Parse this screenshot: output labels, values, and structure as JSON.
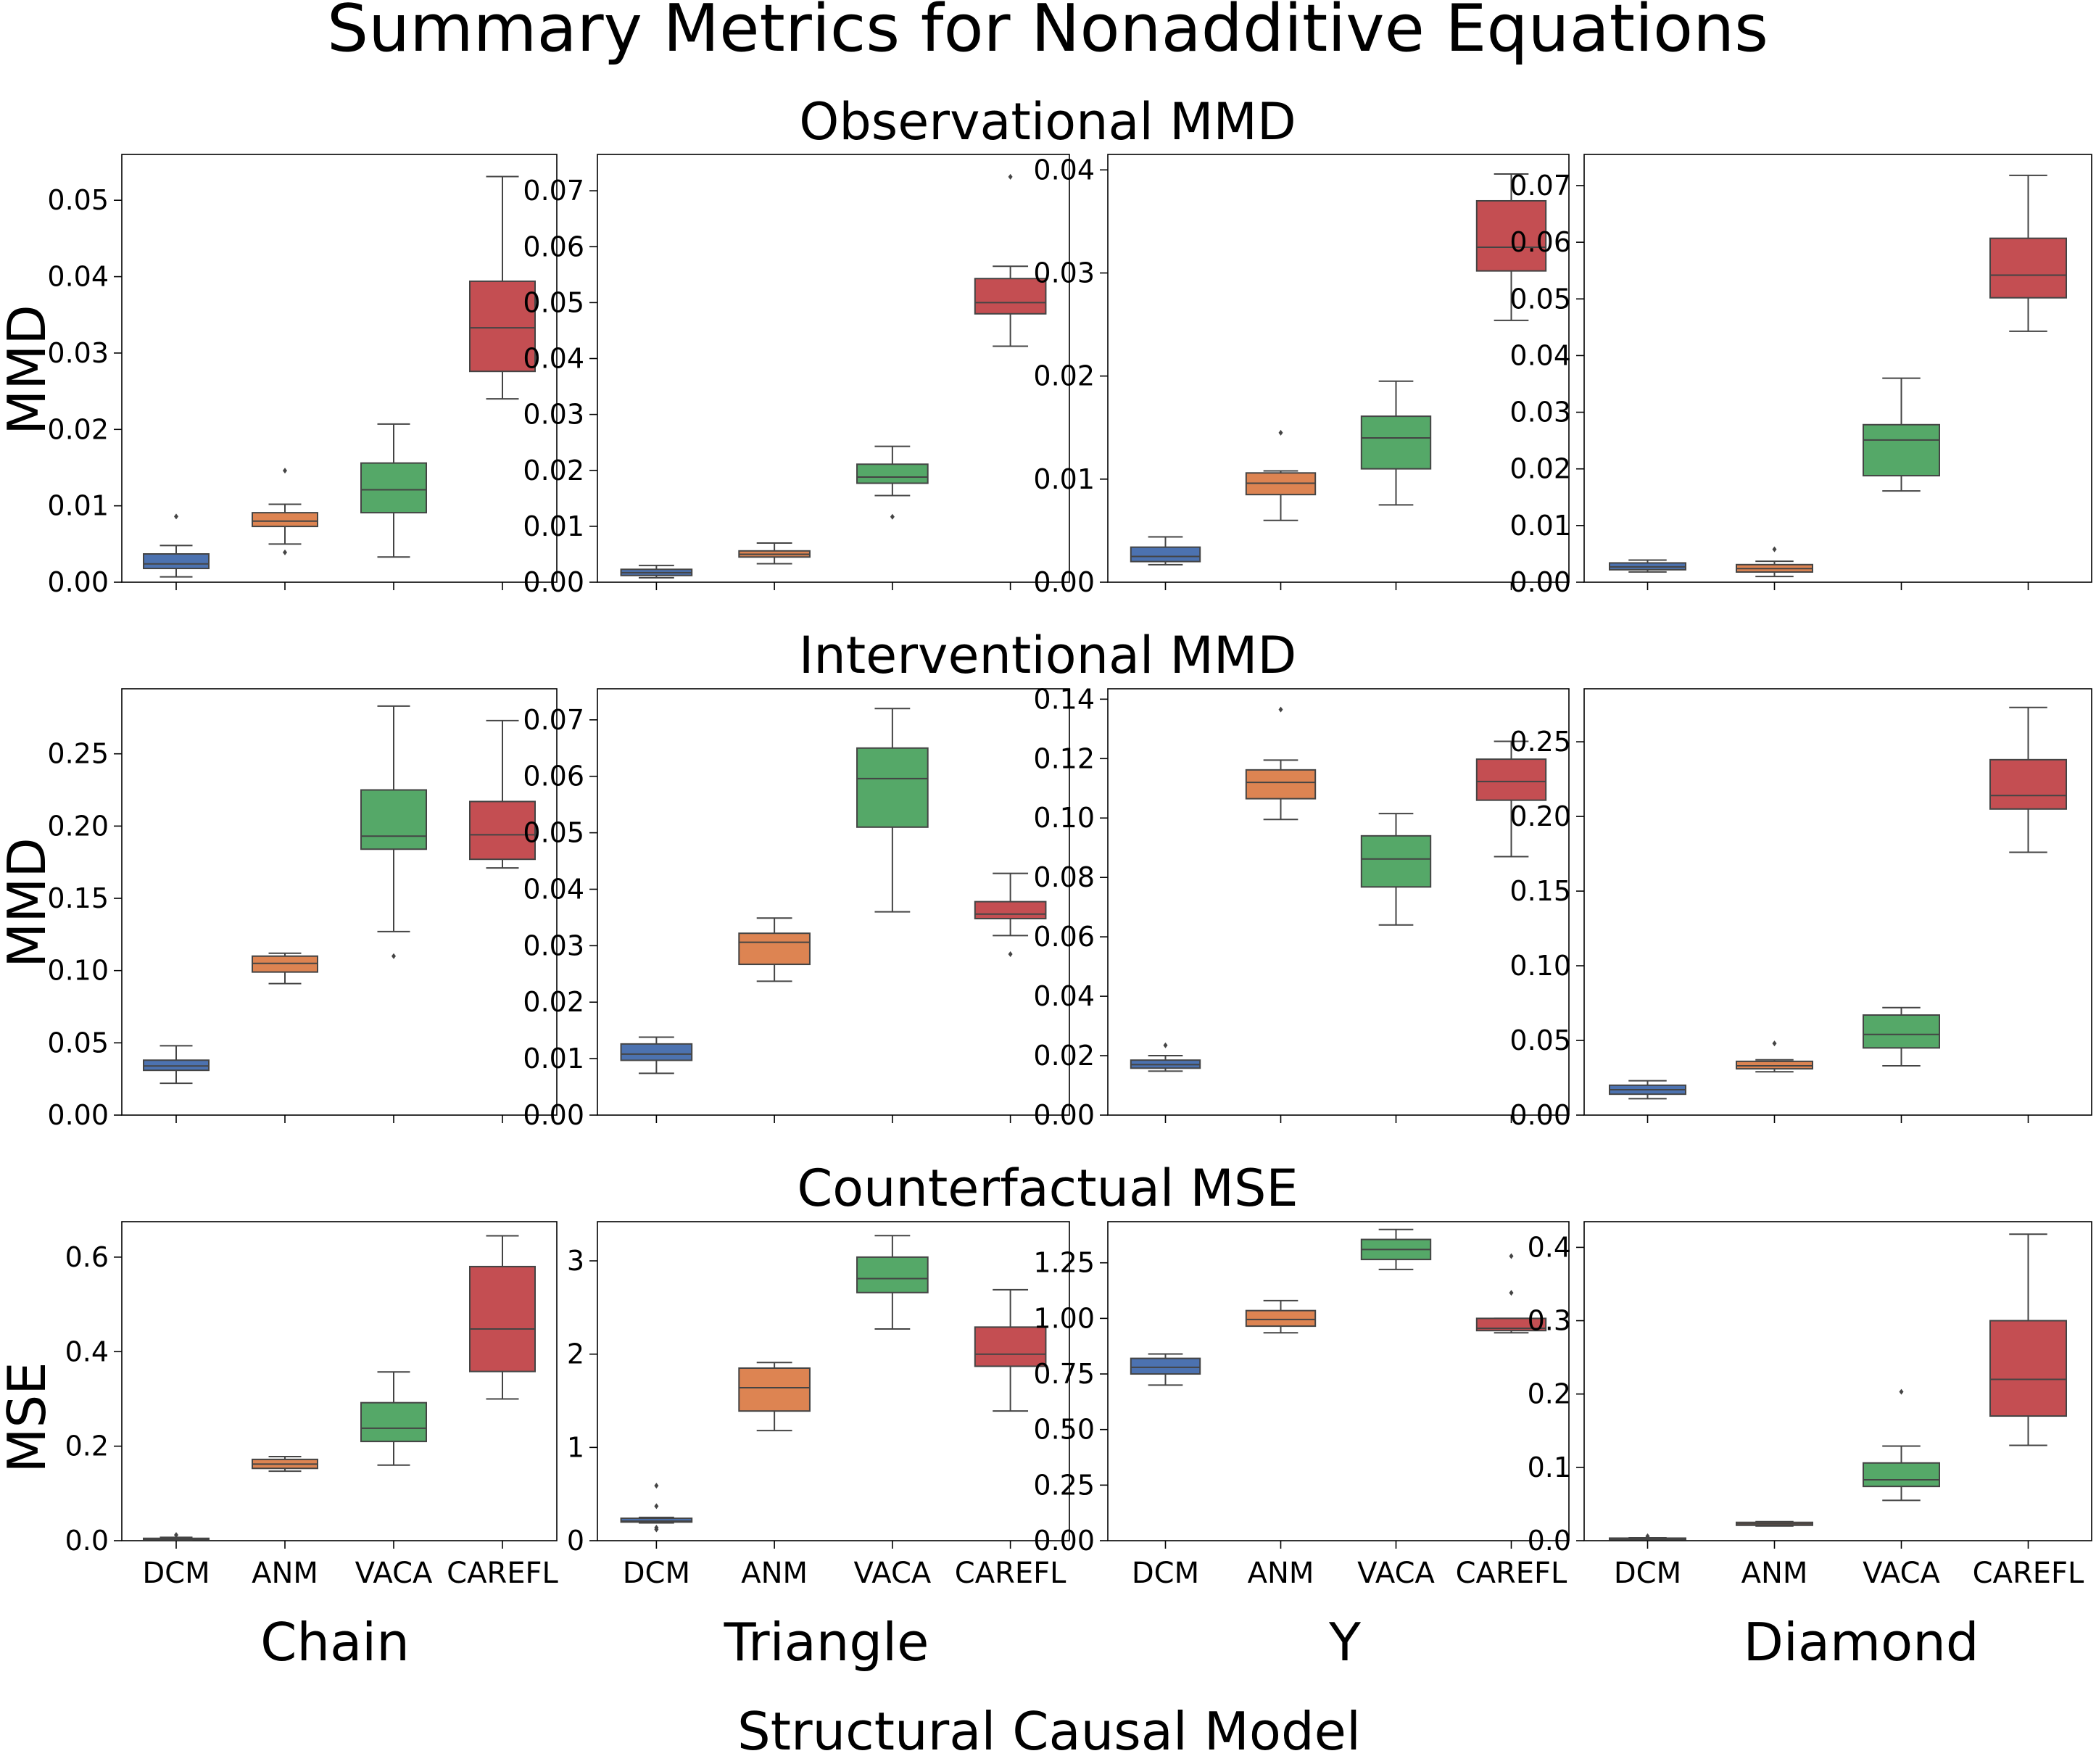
{
  "title": "Summary Metrics for Nonadditive Equations",
  "xlabel": "Structural Causal Model",
  "columns": [
    "Chain",
    "Triangle",
    "Y",
    "Diamond"
  ],
  "row_titles": [
    "Observational MMD",
    "Interventional MMD",
    "Counterfactual MSE"
  ],
  "row_ylabels": [
    "MMD",
    "MMD",
    "MSE"
  ],
  "categories": [
    "DCM",
    "ANM",
    "VACA",
    "CAREFL"
  ],
  "colors": {
    "DCM": "#4c72b0",
    "ANM": "#dd8452",
    "VACA": "#55a868",
    "CAREFL": "#c44e52"
  },
  "chart_data": [
    {
      "type": "box",
      "row": "Observational MMD",
      "column": "Chain",
      "ylabel": "MMD",
      "ylim": [
        0,
        0.056
      ],
      "yticks": [
        0.0,
        0.01,
        0.02,
        0.03,
        0.04,
        0.05
      ],
      "ytick_labels": [
        "0.00",
        "0.01",
        "0.02",
        "0.03",
        "0.04",
        "0.05"
      ],
      "boxes": [
        {
          "category": "DCM",
          "whisker_low": 0.0007,
          "q1": 0.0018,
          "median": 0.0024,
          "q3": 0.0037,
          "whisker_high": 0.0048,
          "outliers": [
            0.0086
          ]
        },
        {
          "category": "ANM",
          "whisker_low": 0.005,
          "q1": 0.0073,
          "median": 0.008,
          "q3": 0.0091,
          "whisker_high": 0.0102,
          "outliers": [
            0.0146,
            0.0039
          ]
        },
        {
          "category": "VACA",
          "whisker_low": 0.0033,
          "q1": 0.0091,
          "median": 0.0121,
          "q3": 0.0156,
          "whisker_high": 0.0207,
          "outliers": []
        },
        {
          "category": "CAREFL",
          "whisker_low": 0.024,
          "q1": 0.0276,
          "median": 0.0333,
          "q3": 0.0394,
          "whisker_high": 0.0531,
          "outliers": []
        }
      ]
    },
    {
      "type": "box",
      "row": "Observational MMD",
      "column": "Triangle",
      "ylabel": "",
      "ylim": [
        0,
        0.0765
      ],
      "yticks": [
        0.0,
        0.01,
        0.02,
        0.03,
        0.04,
        0.05,
        0.06,
        0.07
      ],
      "ytick_labels": [
        "0.00",
        "0.01",
        "0.02",
        "0.03",
        "0.04",
        "0.05",
        "0.06",
        "0.07"
      ],
      "boxes": [
        {
          "category": "DCM",
          "whisker_low": 0.0008,
          "q1": 0.0012,
          "median": 0.0017,
          "q3": 0.0023,
          "whisker_high": 0.003,
          "outliers": []
        },
        {
          "category": "ANM",
          "whisker_low": 0.0033,
          "q1": 0.0045,
          "median": 0.005,
          "q3": 0.0056,
          "whisker_high": 0.007,
          "outliers": []
        },
        {
          "category": "VACA",
          "whisker_low": 0.0155,
          "q1": 0.0177,
          "median": 0.0188,
          "q3": 0.0211,
          "whisker_high": 0.0243,
          "outliers": [
            0.0117
          ]
        },
        {
          "category": "CAREFL",
          "whisker_low": 0.0422,
          "q1": 0.048,
          "median": 0.05,
          "q3": 0.0543,
          "whisker_high": 0.0565,
          "outliers": [
            0.0725
          ]
        }
      ]
    },
    {
      "type": "box",
      "row": "Observational MMD",
      "column": "Y",
      "ylabel": "",
      "ylim": [
        0,
        0.0415
      ],
      "yticks": [
        0.0,
        0.01,
        0.02,
        0.03,
        0.04
      ],
      "ytick_labels": [
        "0.00",
        "0.01",
        "0.02",
        "0.03",
        "0.04"
      ],
      "boxes": [
        {
          "category": "DCM",
          "whisker_low": 0.0017,
          "q1": 0.002,
          "median": 0.0025,
          "q3": 0.0034,
          "whisker_high": 0.0044,
          "outliers": []
        },
        {
          "category": "ANM",
          "whisker_low": 0.006,
          "q1": 0.0085,
          "median": 0.0096,
          "q3": 0.0106,
          "whisker_high": 0.0108,
          "outliers": [
            0.0145
          ]
        },
        {
          "category": "VACA",
          "whisker_low": 0.0075,
          "q1": 0.011,
          "median": 0.014,
          "q3": 0.0161,
          "whisker_high": 0.0195,
          "outliers": []
        },
        {
          "category": "CAREFL",
          "whisker_low": 0.0254,
          "q1": 0.0302,
          "median": 0.0325,
          "q3": 0.037,
          "whisker_high": 0.0396,
          "outliers": []
        }
      ]
    },
    {
      "type": "box",
      "row": "Observational MMD",
      "column": "Diamond",
      "ylabel": "",
      "ylim": [
        0,
        0.0755
      ],
      "yticks": [
        0.0,
        0.01,
        0.02,
        0.03,
        0.04,
        0.05,
        0.06,
        0.07
      ],
      "ytick_labels": [
        "0.00",
        "0.01",
        "0.02",
        "0.03",
        "0.04",
        "0.05",
        "0.06",
        "0.07"
      ],
      "boxes": [
        {
          "category": "DCM",
          "whisker_low": 0.0018,
          "q1": 0.0022,
          "median": 0.0027,
          "q3": 0.0034,
          "whisker_high": 0.0039,
          "outliers": []
        },
        {
          "category": "ANM",
          "whisker_low": 0.001,
          "q1": 0.0018,
          "median": 0.0024,
          "q3": 0.0031,
          "whisker_high": 0.0037,
          "outliers": [
            0.0058
          ]
        },
        {
          "category": "VACA",
          "whisker_low": 0.0161,
          "q1": 0.0188,
          "median": 0.0251,
          "q3": 0.0278,
          "whisker_high": 0.036,
          "outliers": []
        },
        {
          "category": "CAREFL",
          "whisker_low": 0.0443,
          "q1": 0.0502,
          "median": 0.0542,
          "q3": 0.0607,
          "whisker_high": 0.0718,
          "outliers": []
        }
      ]
    },
    {
      "type": "box",
      "row": "Interventional MMD",
      "column": "Chain",
      "ylabel": "MMD",
      "ylim": [
        0,
        0.295
      ],
      "yticks": [
        0.0,
        0.05,
        0.1,
        0.15,
        0.2,
        0.25
      ],
      "ytick_labels": [
        "0.00",
        "0.05",
        "0.10",
        "0.15",
        "0.20",
        "0.25"
      ],
      "boxes": [
        {
          "category": "DCM",
          "whisker_low": 0.022,
          "q1": 0.031,
          "median": 0.034,
          "q3": 0.038,
          "whisker_high": 0.048,
          "outliers": []
        },
        {
          "category": "ANM",
          "whisker_low": 0.091,
          "q1": 0.099,
          "median": 0.105,
          "q3": 0.11,
          "whisker_high": 0.112,
          "outliers": []
        },
        {
          "category": "VACA",
          "whisker_low": 0.127,
          "q1": 0.184,
          "median": 0.193,
          "q3": 0.225,
          "whisker_high": 0.283,
          "outliers": [
            0.11
          ]
        },
        {
          "category": "CAREFL",
          "whisker_low": 0.171,
          "q1": 0.177,
          "median": 0.194,
          "q3": 0.217,
          "whisker_high": 0.273,
          "outliers": []
        }
      ]
    },
    {
      "type": "box",
      "row": "Interventional MMD",
      "column": "Triangle",
      "ylabel": "",
      "ylim": [
        0,
        0.0755
      ],
      "yticks": [
        0.0,
        0.01,
        0.02,
        0.03,
        0.04,
        0.05,
        0.06,
        0.07
      ],
      "ytick_labels": [
        "0.00",
        "0.01",
        "0.02",
        "0.03",
        "0.04",
        "0.05",
        "0.06",
        "0.07"
      ],
      "boxes": [
        {
          "category": "DCM",
          "whisker_low": 0.0074,
          "q1": 0.0097,
          "median": 0.0108,
          "q3": 0.0126,
          "whisker_high": 0.0138,
          "outliers": []
        },
        {
          "category": "ANM",
          "whisker_low": 0.0237,
          "q1": 0.0267,
          "median": 0.0306,
          "q3": 0.0322,
          "whisker_high": 0.0349,
          "outliers": []
        },
        {
          "category": "VACA",
          "whisker_low": 0.036,
          "q1": 0.051,
          "median": 0.0596,
          "q3": 0.065,
          "whisker_high": 0.072,
          "outliers": []
        },
        {
          "category": "CAREFL",
          "whisker_low": 0.0318,
          "q1": 0.0348,
          "median": 0.0356,
          "q3": 0.0378,
          "whisker_high": 0.0428,
          "outliers": [
            0.0285
          ]
        }
      ]
    },
    {
      "type": "box",
      "row": "Interventional MMD",
      "column": "Y",
      "ylabel": "",
      "ylim": [
        0,
        0.1435
      ],
      "yticks": [
        0.0,
        0.02,
        0.04,
        0.06,
        0.08,
        0.1,
        0.12,
        0.14
      ],
      "ytick_labels": [
        "0.00",
        "0.02",
        "0.04",
        "0.06",
        "0.08",
        "0.10",
        "0.12",
        "0.14"
      ],
      "boxes": [
        {
          "category": "DCM",
          "whisker_low": 0.0148,
          "q1": 0.0158,
          "median": 0.017,
          "q3": 0.0185,
          "whisker_high": 0.02,
          "outliers": [
            0.0235
          ]
        },
        {
          "category": "ANM",
          "whisker_low": 0.0995,
          "q1": 0.1065,
          "median": 0.112,
          "q3": 0.1162,
          "whisker_high": 0.1195,
          "outliers": [
            0.1365
          ]
        },
        {
          "category": "VACA",
          "whisker_low": 0.064,
          "q1": 0.0768,
          "median": 0.0862,
          "q3": 0.094,
          "whisker_high": 0.1015,
          "outliers": []
        },
        {
          "category": "CAREFL",
          "whisker_low": 0.087,
          "q1": 0.106,
          "median": 0.1123,
          "q3": 0.1198,
          "whisker_high": 0.1258,
          "outliers": []
        }
      ]
    },
    {
      "type": "box",
      "row": "Interventional MMD",
      "column": "Diamond",
      "ylabel": "",
      "ylim": [
        0,
        0.2855
      ],
      "yticks": [
        0.0,
        0.05,
        0.1,
        0.15,
        0.2,
        0.25
      ],
      "ytick_labels": [
        "0.00",
        "0.05",
        "0.10",
        "0.15",
        "0.20",
        "0.25"
      ],
      "boxes": [
        {
          "category": "DCM",
          "whisker_low": 0.011,
          "q1": 0.014,
          "median": 0.017,
          "q3": 0.02,
          "whisker_high": 0.023,
          "outliers": []
        },
        {
          "category": "ANM",
          "whisker_low": 0.029,
          "q1": 0.031,
          "median": 0.033,
          "q3": 0.036,
          "whisker_high": 0.037,
          "outliers": [
            0.048
          ]
        },
        {
          "category": "VACA",
          "whisker_low": 0.033,
          "q1": 0.045,
          "median": 0.054,
          "q3": 0.067,
          "whisker_high": 0.072,
          "outliers": []
        },
        {
          "category": "CAREFL",
          "whisker_low": 0.176,
          "q1": 0.205,
          "median": 0.214,
          "q3": 0.238,
          "whisker_high": 0.273,
          "outliers": []
        }
      ]
    },
    {
      "type": "box",
      "row": "Counterfactual MSE",
      "column": "Chain",
      "ylabel": "MSE",
      "ylim": [
        0,
        0.675
      ],
      "yticks": [
        0.0,
        0.2,
        0.4,
        0.6
      ],
      "ytick_labels": [
        "0.0",
        "0.2",
        "0.4",
        "0.6"
      ],
      "boxes": [
        {
          "category": "DCM",
          "whisker_low": 0.002,
          "q1": 0.003,
          "median": 0.004,
          "q3": 0.005,
          "whisker_high": 0.007,
          "outliers": [
            0.012
          ]
        },
        {
          "category": "ANM",
          "whisker_low": 0.147,
          "q1": 0.153,
          "median": 0.162,
          "q3": 0.172,
          "whisker_high": 0.178,
          "outliers": []
        },
        {
          "category": "VACA",
          "whisker_low": 0.16,
          "q1": 0.21,
          "median": 0.238,
          "q3": 0.292,
          "whisker_high": 0.357,
          "outliers": []
        },
        {
          "category": "CAREFL",
          "whisker_low": 0.3,
          "q1": 0.358,
          "median": 0.448,
          "q3": 0.58,
          "whisker_high": 0.645,
          "outliers": []
        }
      ]
    },
    {
      "type": "box",
      "row": "Counterfactual MSE",
      "column": "Triangle",
      "ylabel": "",
      "ylim": [
        0,
        3.42
      ],
      "yticks": [
        0,
        1,
        2,
        3
      ],
      "ytick_labels": [
        "0",
        "1",
        "2",
        "3"
      ],
      "boxes": [
        {
          "category": "DCM",
          "whisker_low": 0.19,
          "q1": 0.2,
          "median": 0.21,
          "q3": 0.24,
          "whisker_high": 0.25,
          "outliers": [
            0.59,
            0.37,
            0.14,
            0.12
          ]
        },
        {
          "category": "ANM",
          "whisker_low": 1.18,
          "q1": 1.39,
          "median": 1.64,
          "q3": 1.85,
          "whisker_high": 1.91,
          "outliers": []
        },
        {
          "category": "VACA",
          "whisker_low": 2.27,
          "q1": 2.66,
          "median": 2.81,
          "q3": 3.04,
          "whisker_high": 3.27,
          "outliers": []
        },
        {
          "category": "CAREFL",
          "whisker_low": 1.39,
          "q1": 1.87,
          "median": 2.0,
          "q3": 2.29,
          "whisker_high": 2.69,
          "outliers": []
        }
      ]
    },
    {
      "type": "box",
      "row": "Counterfactual MSE",
      "column": "Y",
      "ylabel": "",
      "ylim": [
        0,
        1.435
      ],
      "yticks": [
        0.0,
        0.25,
        0.5,
        0.75,
        1.0,
        1.25
      ],
      "ytick_labels": [
        "0.00",
        "0.25",
        "0.50",
        "0.75",
        "1.00",
        "1.25"
      ],
      "boxes": [
        {
          "category": "DCM",
          "whisker_low": 0.7,
          "q1": 0.75,
          "median": 0.78,
          "q3": 0.82,
          "whisker_high": 0.84,
          "outliers": []
        },
        {
          "category": "ANM",
          "whisker_low": 0.935,
          "q1": 0.965,
          "median": 0.995,
          "q3": 1.035,
          "whisker_high": 1.08,
          "outliers": []
        },
        {
          "category": "VACA",
          "whisker_low": 1.22,
          "q1": 1.265,
          "median": 1.31,
          "q3": 1.355,
          "whisker_high": 1.4,
          "outliers": []
        },
        {
          "category": "CAREFL",
          "whisker_low": 0.935,
          "q1": 0.945,
          "median": 0.955,
          "q3": 1.0,
          "whisker_high": 1.0,
          "outliers": [
            1.28,
            1.115
          ]
        }
      ]
    },
    {
      "type": "box",
      "row": "Counterfactual MSE",
      "column": "Diamond",
      "ylabel": "",
      "ylim": [
        0,
        0.435
      ],
      "yticks": [
        0.0,
        0.1,
        0.2,
        0.3,
        0.4
      ],
      "ytick_labels": [
        "0.0",
        "0.1",
        "0.2",
        "0.3",
        "0.4"
      ],
      "boxes": [
        {
          "category": "DCM",
          "whisker_low": 0.002,
          "q1": 0.0025,
          "median": 0.003,
          "q3": 0.0035,
          "whisker_high": 0.004,
          "outliers": [
            0.006
          ]
        },
        {
          "category": "ANM",
          "whisker_low": 0.02,
          "q1": 0.021,
          "median": 0.023,
          "q3": 0.025,
          "whisker_high": 0.026,
          "outliers": []
        },
        {
          "category": "VACA",
          "whisker_low": 0.055,
          "q1": 0.074,
          "median": 0.083,
          "q3": 0.106,
          "whisker_high": 0.129,
          "outliers": [
            0.203
          ]
        },
        {
          "category": "CAREFL",
          "whisker_low": 0.13,
          "q1": 0.17,
          "median": 0.22,
          "q3": 0.3,
          "whisker_high": 0.418,
          "outliers": []
        }
      ]
    }
  ]
}
